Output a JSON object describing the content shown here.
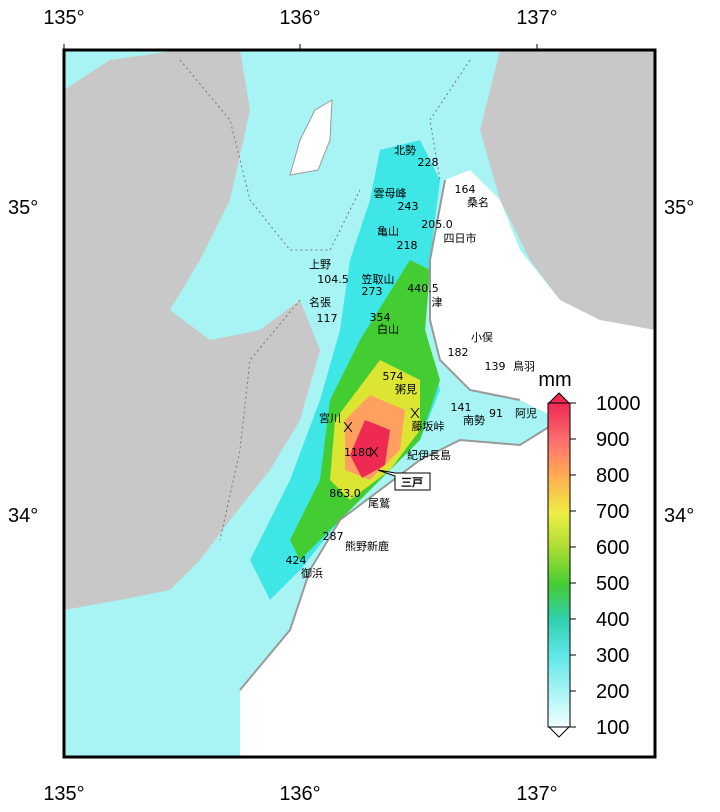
{
  "axes": {
    "lon_labels": [
      "135°",
      "136°",
      "137°"
    ],
    "lat_labels": [
      "35°",
      "34°"
    ]
  },
  "stations": [
    {
      "name": "北勢",
      "value": "228"
    },
    {
      "name": "桑名",
      "value": "164"
    },
    {
      "name": "雲母峰",
      "value": "243"
    },
    {
      "name": "四日市",
      "value": "205.0"
    },
    {
      "name": "亀山",
      "value": "218"
    },
    {
      "name": "上野",
      "value": "104.5"
    },
    {
      "name": "笠取山",
      "value": "273"
    },
    {
      "name": "津",
      "value": "440.5"
    },
    {
      "name": "名張",
      "value": "117"
    },
    {
      "name": "白山",
      "value": "354"
    },
    {
      "name": "小俣",
      "value": "182"
    },
    {
      "name": "鳥羽",
      "value": "139"
    },
    {
      "name": "粥見",
      "value": "574"
    },
    {
      "name": "南勢",
      "value": "141"
    },
    {
      "name": "阿児",
      "value": "91"
    },
    {
      "name": "宮川",
      "value": "1180"
    },
    {
      "name": "尾鷲",
      "value": "863.0"
    },
    {
      "name": "熊野新鹿",
      "value": "287"
    },
    {
      "name": "御浜",
      "value": "424"
    }
  ],
  "other_labels": {
    "pass": "藤坂峠",
    "town": "紀伊長島",
    "callout": "三戸"
  },
  "colorbar": {
    "unit": "mm",
    "ticks": [
      "100",
      "200",
      "300",
      "400",
      "500",
      "600",
      "700",
      "800",
      "900",
      "1000"
    ]
  }
}
